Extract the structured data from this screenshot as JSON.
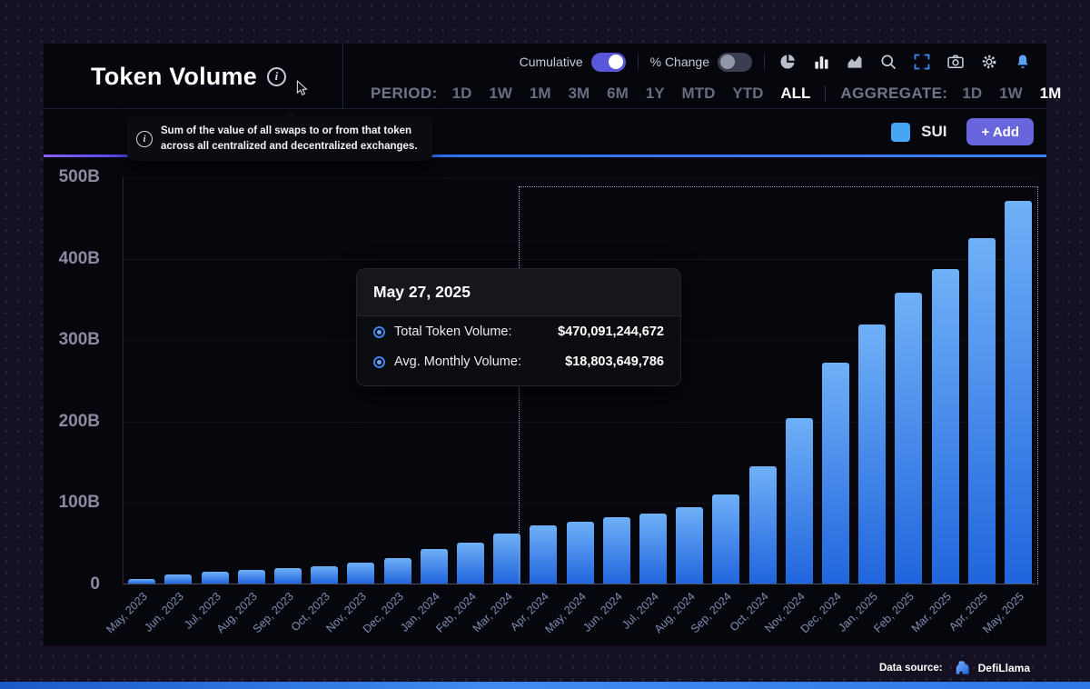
{
  "header": {
    "title": "Token Volume",
    "info_tooltip": "Sum of the value of all swaps to or from that token across all centralized and decentralized exchanges.",
    "toggles": [
      {
        "label": "Cumulative",
        "on": true
      },
      {
        "label": "% Change",
        "on": false
      }
    ],
    "toolbar_icons": [
      "pie-chart",
      "bar-chart",
      "area-chart",
      "search",
      "fullscreen",
      "camera",
      "settings",
      "notifications"
    ],
    "period": {
      "label": "PERIOD:",
      "options": [
        "1D",
        "1W",
        "1M",
        "3M",
        "6M",
        "1Y",
        "MTD",
        "YTD",
        "ALL"
      ],
      "selected": "ALL"
    },
    "aggregate": {
      "label": "AGGREGATE:",
      "options": [
        "1D",
        "1W",
        "1M"
      ],
      "selected": "1M"
    }
  },
  "legend": {
    "token": "SUI",
    "swatch_color": "#47a6f3",
    "add_button": "+ Add"
  },
  "chart_tooltip": {
    "date": "May 27, 2025",
    "rows": [
      {
        "label": "Total Token Volume:",
        "value": "$470,091,244,672"
      },
      {
        "label": "Avg. Monthly Volume:",
        "value": "$18,803,649,786"
      }
    ]
  },
  "footer": {
    "label": "Data source:",
    "source": "DefiLlama"
  },
  "chart_data": {
    "type": "bar",
    "title": "Token Volume (cumulative, SUI)",
    "categories": [
      "May, 2023",
      "Jun, 2023",
      "Jul, 2023",
      "Aug, 2023",
      "Sep, 2023",
      "Oct, 2023",
      "Nov, 2023",
      "Dec, 2023",
      "Jan, 2024",
      "Feb, 2024",
      "Mar, 2024",
      "Apr, 2024",
      "May, 2024",
      "Jun, 2024",
      "Jul, 2024",
      "Aug, 2024",
      "Sep, 2024",
      "Oct, 2024",
      "Nov, 2024",
      "Dec, 2024",
      "Jan, 2025",
      "Feb, 2025",
      "Mar, 2025",
      "Apr, 2025",
      "May, 2025"
    ],
    "values": [
      6,
      11,
      14,
      17,
      19,
      21,
      26,
      31,
      42,
      50,
      61,
      72,
      76,
      81,
      86,
      94,
      109,
      144,
      203,
      271,
      318,
      357,
      386,
      424,
      470
    ],
    "value_unit": "billions USD",
    "xlabel": "",
    "ylabel": "",
    "ylim": [
      0,
      500
    ],
    "yticks": [
      "500B",
      "400B",
      "300B",
      "200B",
      "100B",
      "0"
    ],
    "grid": true,
    "legend_position": "top-right",
    "bar_color_top": "#6fb0f7",
    "bar_color_bottom": "#2165dd",
    "selection": {
      "from_category": "Apr, 2024",
      "to_category": "May, 2025",
      "style": "dotted-outline"
    }
  }
}
